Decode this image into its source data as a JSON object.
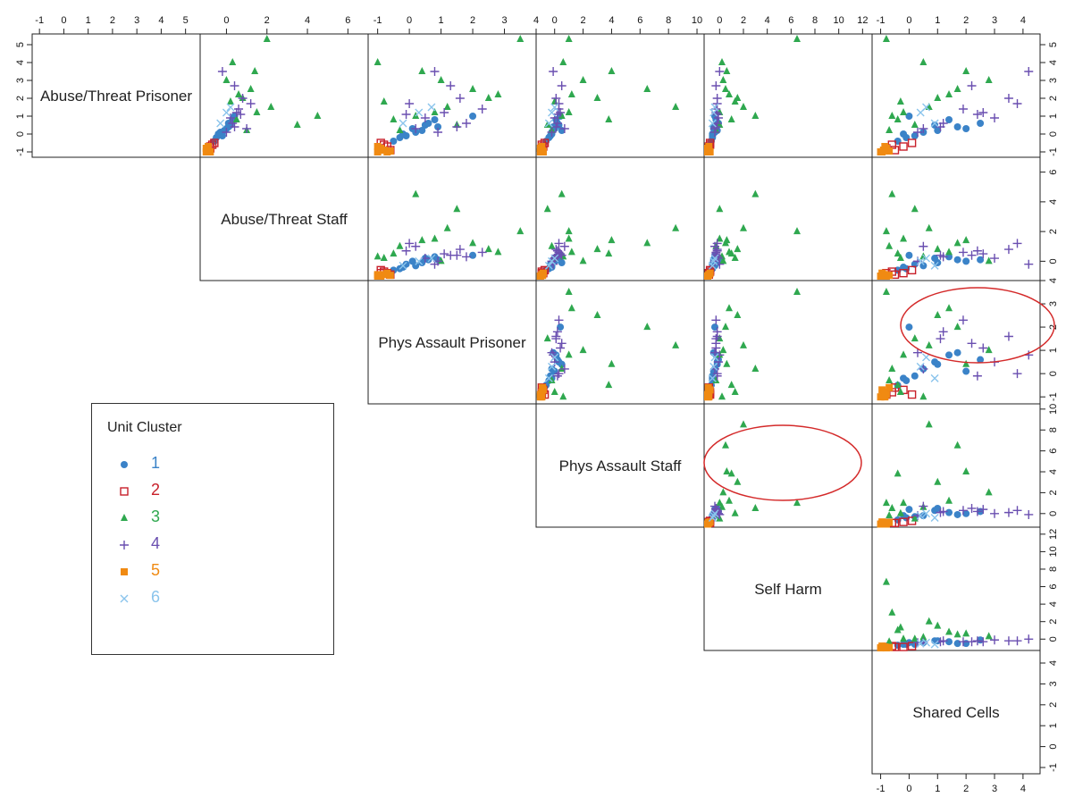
{
  "chart_data": {
    "type": "scatter",
    "subtype": "scatterplot-matrix-upper-triangle",
    "variables": [
      "Abuse/Threat Prisoner",
      "Abuse/Threat Staff",
      "Phys Assault Prisoner",
      "Phys Assault Staff",
      "Self Harm",
      "Shared Cells"
    ],
    "ranges": [
      [
        -1.3,
        5.6
      ],
      [
        -1.3,
        7.0
      ],
      [
        -1.3,
        4.0
      ],
      [
        -1.3,
        10.5
      ],
      [
        -1.3,
        12.8
      ],
      [
        -1.3,
        4.6
      ]
    ],
    "ticks": [
      [
        "-1",
        "0",
        "1",
        "2",
        "3",
        "4",
        "5"
      ],
      [
        "0",
        "2",
        "4",
        "6"
      ],
      [
        "-1",
        "0",
        "1",
        "2",
        "3",
        "4"
      ],
      [
        "0",
        "2",
        "4",
        "6",
        "8",
        "10"
      ],
      [
        "0",
        "2",
        "4",
        "6",
        "8",
        "10",
        "12"
      ],
      [
        "-1",
        "0",
        "1",
        "2",
        "3",
        "4"
      ]
    ],
    "legend": {
      "title": "Unit Cluster",
      "position": "bottom-left",
      "entries": [
        {
          "label": "1",
          "color": "#3b83c8",
          "symbol": "filled-circle"
        },
        {
          "label": "2",
          "color": "#c8202a",
          "symbol": "open-square"
        },
        {
          "label": "3",
          "color": "#2fa84f",
          "symbol": "filled-triangle"
        },
        {
          "label": "4",
          "color": "#6a4fb0",
          "symbol": "plus"
        },
        {
          "label": "5",
          "color": "#f08a12",
          "symbol": "filled-square"
        },
        {
          "label": "6",
          "color": "#8ac4ec",
          "symbol": "cross"
        }
      ]
    },
    "points": [
      {
        "c": 1,
        "v": [
          -0.2,
          -0.5,
          -0.3,
          -0.4,
          -0.6,
          -0.1
        ]
      },
      {
        "c": 1,
        "v": [
          0.1,
          -0.3,
          0.2,
          -0.2,
          -0.4,
          0.5
        ]
      },
      {
        "c": 1,
        "v": [
          0.5,
          0.2,
          0.5,
          0.3,
          -0.2,
          0.9
        ]
      },
      {
        "c": 1,
        "v": [
          0.8,
          0.3,
          0.8,
          0.1,
          -0.3,
          1.4
        ]
      },
      {
        "c": 1,
        "v": [
          -0.4,
          -0.6,
          -0.5,
          -0.6,
          -0.7,
          -0.4
        ]
      },
      {
        "c": 1,
        "v": [
          0.3,
          0.0,
          0.1,
          0.0,
          -0.5,
          2.0
        ]
      },
      {
        "c": 1,
        "v": [
          0.6,
          0.1,
          0.6,
          0.2,
          -0.1,
          2.5
        ]
      },
      {
        "c": 1,
        "v": [
          -0.1,
          -0.2,
          -0.1,
          -0.3,
          -0.6,
          0.2
        ]
      },
      {
        "c": 1,
        "v": [
          0.2,
          -0.1,
          0.4,
          0.5,
          -0.2,
          1.0
        ]
      },
      {
        "c": 1,
        "v": [
          1.0,
          0.4,
          2.0,
          0.4,
          -0.4,
          0.0
        ]
      },
      {
        "c": 1,
        "v": [
          0.4,
          0.1,
          0.9,
          -0.1,
          -0.5,
          1.7
        ]
      },
      {
        "c": 1,
        "v": [
          0.0,
          -0.4,
          -0.2,
          -0.2,
          -0.6,
          -0.2
        ]
      },
      {
        "c": 2,
        "v": [
          -0.8,
          -0.8,
          -0.9,
          -0.9,
          -0.9,
          -0.8
        ]
      },
      {
        "c": 2,
        "v": [
          -0.6,
          -0.7,
          -0.8,
          -0.9,
          -0.8,
          -0.6
        ]
      },
      {
        "c": 2,
        "v": [
          -0.7,
          -0.8,
          -0.7,
          -0.8,
          -0.9,
          -0.2
        ]
      },
      {
        "c": 2,
        "v": [
          -0.5,
          -0.6,
          -0.9,
          -0.7,
          -0.8,
          0.1
        ]
      },
      {
        "c": 2,
        "v": [
          -0.9,
          -0.9,
          -0.6,
          -0.9,
          -0.9,
          -0.5
        ]
      },
      {
        "c": 3,
        "v": [
          1.2,
          1.5,
          0.8,
          1.0,
          0.0,
          -0.2
        ]
      },
      {
        "c": 3,
        "v": [
          2.0,
          0.8,
          2.5,
          3.0,
          1.5,
          1.0
        ]
      },
      {
        "c": 3,
        "v": [
          1.0,
          4.5,
          0.2,
          0.5,
          3.0,
          -0.6
        ]
      },
      {
        "c": 3,
        "v": [
          2.5,
          1.2,
          2.0,
          6.5,
          0.5,
          1.7
        ]
      },
      {
        "c": 3,
        "v": [
          0.8,
          0.5,
          -0.5,
          3.8,
          1.0,
          -0.4
        ]
      },
      {
        "c": 3,
        "v": [
          4.0,
          0.3,
          -1.0,
          0.6,
          0.2,
          0.5
        ]
      },
      {
        "c": 3,
        "v": [
          5.3,
          2.0,
          3.5,
          1.0,
          6.5,
          -0.8
        ]
      },
      {
        "c": 3,
        "v": [
          0.5,
          3.5,
          1.5,
          -0.5,
          0.0,
          0.2
        ]
      },
      {
        "c": 3,
        "v": [
          1.5,
          2.2,
          1.2,
          8.5,
          2.0,
          0.7
        ]
      },
      {
        "c": 3,
        "v": [
          3.0,
          0.0,
          1.0,
          2.0,
          0.3,
          2.8
        ]
      },
      {
        "c": 3,
        "v": [
          0.2,
          1.0,
          -0.3,
          -0.2,
          -0.3,
          -0.7
        ]
      },
      {
        "c": 3,
        "v": [
          2.2,
          0.6,
          2.8,
          1.2,
          0.8,
          1.4
        ]
      },
      {
        "c": 3,
        "v": [
          3.5,
          1.4,
          0.4,
          4.0,
          0.6,
          2.0
        ]
      },
      {
        "c": 3,
        "v": [
          1.8,
          0.2,
          -0.8,
          0.0,
          1.3,
          -0.3
        ]
      },
      {
        "c": 4,
        "v": [
          0.6,
          0.3,
          1.8,
          0.2,
          -0.2,
          1.2
        ]
      },
      {
        "c": 4,
        "v": [
          1.2,
          0.5,
          1.1,
          0.4,
          -0.3,
          2.6
        ]
      },
      {
        "c": 4,
        "v": [
          2.0,
          0.8,
          1.6,
          0.1,
          -0.2,
          3.5
        ]
      },
      {
        "c": 4,
        "v": [
          3.5,
          -0.2,
          0.8,
          -0.1,
          0.0,
          4.2
        ]
      },
      {
        "c": 4,
        "v": [
          0.3,
          1.0,
          0.2,
          0.7,
          -0.4,
          0.5
        ]
      },
      {
        "c": 4,
        "v": [
          1.4,
          0.6,
          2.3,
          0.3,
          -0.3,
          1.9
        ]
      },
      {
        "c": 4,
        "v": [
          0.9,
          0.2,
          0.5,
          0.0,
          -0.1,
          3.0
        ]
      },
      {
        "c": 4,
        "v": [
          2.7,
          0.4,
          1.3,
          0.5,
          -0.3,
          2.2
        ]
      },
      {
        "c": 4,
        "v": [
          0.1,
          0.0,
          0.9,
          -0.2,
          -0.4,
          0.3
        ]
      },
      {
        "c": 4,
        "v": [
          1.7,
          1.2,
          0.0,
          0.3,
          -0.2,
          3.8
        ]
      },
      {
        "c": 4,
        "v": [
          0.4,
          0.4,
          1.5,
          0.1,
          -0.3,
          1.1
        ]
      },
      {
        "c": 4,
        "v": [
          1.1,
          0.7,
          -0.1,
          0.2,
          -0.2,
          2.4
        ]
      },
      {
        "c": 5,
        "v": [
          -1.0,
          -1.0,
          -1.0,
          -1.0,
          -1.0,
          -1.0
        ]
      },
      {
        "c": 5,
        "v": [
          -0.9,
          -0.9,
          -0.8,
          -0.9,
          -0.9,
          -0.9
        ]
      },
      {
        "c": 5,
        "v": [
          -0.8,
          -1.0,
          -0.9,
          -1.0,
          -1.0,
          -0.8
        ]
      },
      {
        "c": 5,
        "v": [
          -1.0,
          -0.8,
          -0.7,
          -0.8,
          -0.8,
          -0.95
        ]
      },
      {
        "c": 5,
        "v": [
          -0.7,
          -0.9,
          -1.0,
          -0.9,
          -0.9,
          -0.85
        ]
      },
      {
        "c": 5,
        "v": [
          -0.95,
          -0.95,
          -0.6,
          -0.85,
          -0.95,
          -0.7
        ]
      },
      {
        "c": 6,
        "v": [
          1.5,
          0.2,
          0.7,
          0.0,
          -0.4,
          0.6
        ]
      },
      {
        "c": 6,
        "v": [
          1.2,
          0.0,
          0.3,
          -0.2,
          -0.5,
          0.4
        ]
      },
      {
        "c": 6,
        "v": [
          0.6,
          -0.3,
          -0.2,
          -0.4,
          -0.6,
          0.9
        ]
      }
    ],
    "annotations": [
      {
        "type": "ellipse",
        "color": "#d42a2a",
        "panel": "Shared Cells vs Phys Assault Prisoner"
      },
      {
        "type": "ellipse",
        "color": "#d42a2a",
        "panel": "Self Harm vs Phys Assault Staff"
      }
    ]
  }
}
